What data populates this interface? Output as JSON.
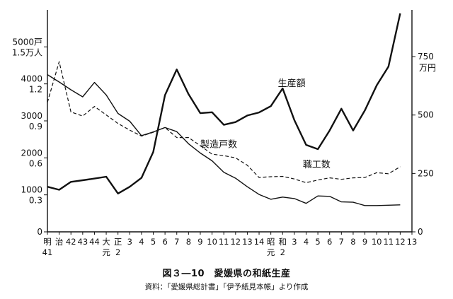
{
  "chart_data": {
    "type": "line",
    "title": "図３―10　愛媛県の和紙生産",
    "source": "資料：「愛媛県総計書」「伊予紙見本帳」より作成",
    "x_top": [
      "明",
      "治",
      "42",
      "43",
      "44",
      "大",
      "正",
      "3",
      "4",
      "5",
      "6",
      "7",
      "8",
      "9",
      "10",
      "11",
      "12",
      "13",
      "14",
      "昭",
      "和",
      "3",
      "4",
      "5",
      "6",
      "7",
      "8",
      "9",
      "10",
      "11",
      "12",
      "13"
    ],
    "x_bottom": [
      "41",
      "",
      "",
      "",
      "",
      "元",
      "2",
      "",
      "",
      "",
      "",
      "",
      "",
      "",
      "",
      "",
      "",
      "",
      "",
      "元",
      "2",
      "",
      "",
      "",
      "",
      "",
      "",
      "",
      "",
      "",
      "",
      ""
    ],
    "left_axis": {
      "ylim": [
        0,
        6000
      ],
      "ticks": [
        {
          "value": 0,
          "line1": "0",
          "line2": ""
        },
        {
          "value": 1000,
          "line1": "1000",
          "line2": "0.3"
        },
        {
          "value": 2000,
          "line1": "2000",
          "line2": "0.6"
        },
        {
          "value": 3000,
          "line1": "3000",
          "line2": "0.9"
        },
        {
          "value": 4000,
          "line1": "4000",
          "line2": "1.2"
        },
        {
          "value": 5000,
          "line1": "5000戸",
          "line2": "1.5万人"
        }
      ]
    },
    "right_axis": {
      "ylim": [
        0,
        950
      ],
      "unit": "万円",
      "ticks": [
        {
          "value": 0,
          "label": "0"
        },
        {
          "value": 250,
          "label": "250"
        },
        {
          "value": 500,
          "label": "500"
        },
        {
          "value": 750,
          "label": "750"
        }
      ]
    },
    "series": [
      {
        "name": "生産額",
        "axis": "right",
        "style": "bold",
        "values": [
          193,
          180,
          214,
          221,
          228,
          236,
          164,
          193,
          231,
          342,
          585,
          695,
          589,
          508,
          512,
          458,
          470,
          498,
          511,
          538,
          614,
          478,
          372,
          354,
          434,
          527,
          434,
          520,
          627,
          707,
          935
        ]
      },
      {
        "name": "職工数",
        "axis": "left",
        "style": "dashed",
        "values": [
          3500,
          4600,
          3240,
          3130,
          3390,
          3160,
          2930,
          2750,
          2590,
          2690,
          2820,
          2550,
          2550,
          2330,
          2100,
          2060,
          2000,
          1800,
          1470,
          1490,
          1500,
          1430,
          1330,
          1400,
          1460,
          1420,
          1460,
          1470,
          1600,
          1570,
          1760
        ]
      },
      {
        "name": "製造戸数",
        "axis": "left",
        "style": "thin",
        "values": [
          4250,
          4050,
          3840,
          3650,
          4040,
          3700,
          3200,
          2990,
          2600,
          2700,
          2820,
          2710,
          2380,
          2130,
          1920,
          1610,
          1450,
          1220,
          1010,
          880,
          940,
          900,
          770,
          970,
          960,
          810,
          800,
          710,
          710,
          720,
          730
        ]
      }
    ]
  },
  "caption": {
    "title": "図３―10　愛媛県の和紙生産",
    "source": "資料：「愛媛県総計書」「伊予紙見本帳」より作成"
  }
}
